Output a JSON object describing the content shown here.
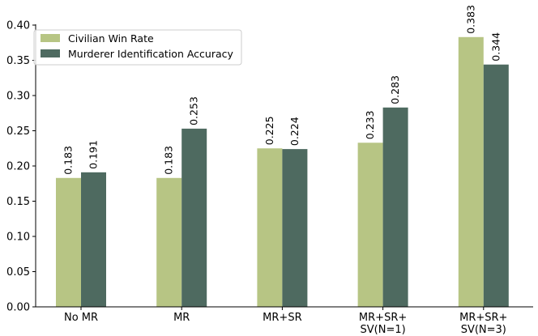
{
  "chart_data": {
    "type": "bar",
    "categories": [
      [
        "No MR"
      ],
      [
        "MR"
      ],
      [
        "MR+SR"
      ],
      [
        "MR+SR+",
        "SV(N=1)"
      ],
      [
        "MR+SR+",
        "SV(N=3)"
      ]
    ],
    "series": [
      {
        "name": "Civilian Win Rate",
        "color": "#b7c584",
        "values": [
          0.183,
          0.183,
          0.225,
          0.233,
          0.383
        ],
        "labels": [
          "0.183",
          "0.183",
          "0.225",
          "0.233",
          "0.383"
        ]
      },
      {
        "name": "Murderer Identification Accuracy",
        "color": "#4e6a60",
        "values": [
          0.191,
          0.253,
          0.224,
          0.283,
          0.344
        ],
        "labels": [
          "0.191",
          "0.253",
          "0.224",
          "0.283",
          "0.344"
        ]
      }
    ],
    "ylim": [
      0,
      0.4
    ],
    "yticks": [
      "0.00",
      "0.05",
      "0.10",
      "0.15",
      "0.20",
      "0.25",
      "0.30",
      "0.35",
      "0.40"
    ],
    "title": "",
    "xlabel": "",
    "ylabel": "",
    "grid": false,
    "legend_position": "top-left"
  }
}
